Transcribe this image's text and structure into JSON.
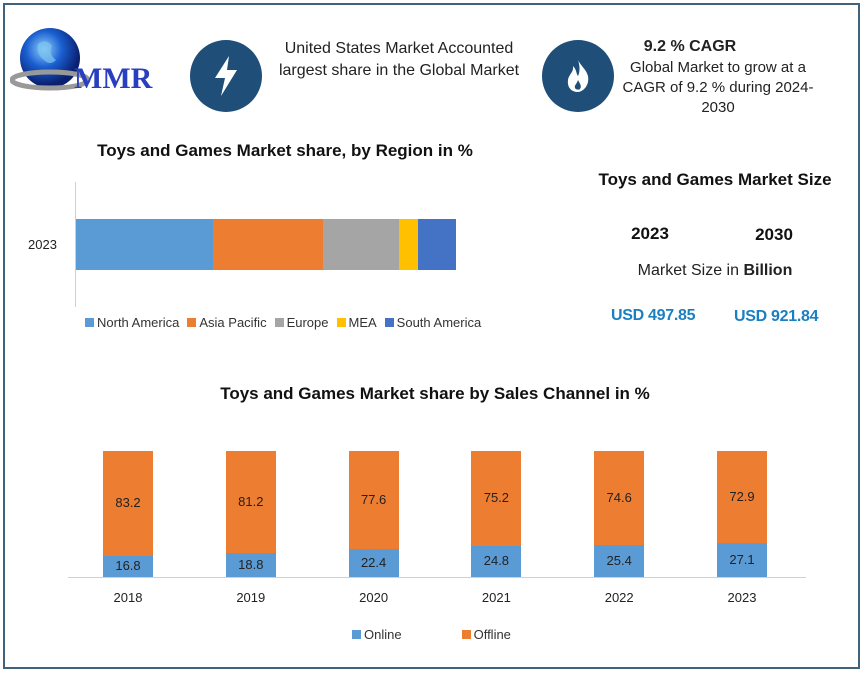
{
  "logo": {
    "text": "MMR"
  },
  "header": {
    "icon1": "lightning-bolt-icon",
    "text1": "United States Market Accounted largest share in the Global Market",
    "icon2": "flame-icon",
    "cagr_title": "9.2 % CAGR",
    "cagr_text": "Global Market to grow at a CAGR of 9.2 % during 2024-2030"
  },
  "market_size": {
    "title": "Toys and Games Market Size",
    "year1": "2023",
    "year2": "2030",
    "unit_prefix": "Market Size in ",
    "unit_bold": "Billion",
    "value1": "USD 497.85",
    "value2": "USD 921.84",
    "value_color": "#1a7fc1"
  },
  "chart_data": [
    {
      "type": "bar",
      "orientation": "horizontal",
      "stacked": true,
      "title": "Toys and Games Market share, by Region in %",
      "categories": [
        "2023"
      ],
      "series": [
        {
          "name": "North America",
          "values": [
            36
          ],
          "color": "#5b9bd5"
        },
        {
          "name": "Asia Pacific",
          "values": [
            29
          ],
          "color": "#ed7d31"
        },
        {
          "name": "Europe",
          "values": [
            20
          ],
          "color": "#a5a5a5"
        },
        {
          "name": "MEA",
          "values": [
            5
          ],
          "color": "#ffc000"
        },
        {
          "name": "South America",
          "values": [
            10
          ],
          "color": "#4472c4"
        }
      ],
      "legend": "bottom",
      "grid": false
    },
    {
      "type": "bar",
      "stacked": true,
      "title": "Toys and Games Market share by Sales Channel in %",
      "categories": [
        "2018",
        "2019",
        "2020",
        "2021",
        "2022",
        "2023"
      ],
      "series": [
        {
          "name": "Online",
          "values": [
            16.8,
            18.8,
            22.4,
            24.8,
            25.4,
            27.1
          ],
          "color": "#5b9bd5"
        },
        {
          "name": "Offline",
          "values": [
            83.2,
            81.2,
            77.6,
            75.2,
            74.6,
            72.9
          ],
          "color": "#ed7d31"
        }
      ],
      "ylim": [
        0,
        100
      ],
      "legend": "bottom",
      "grid": false
    }
  ]
}
